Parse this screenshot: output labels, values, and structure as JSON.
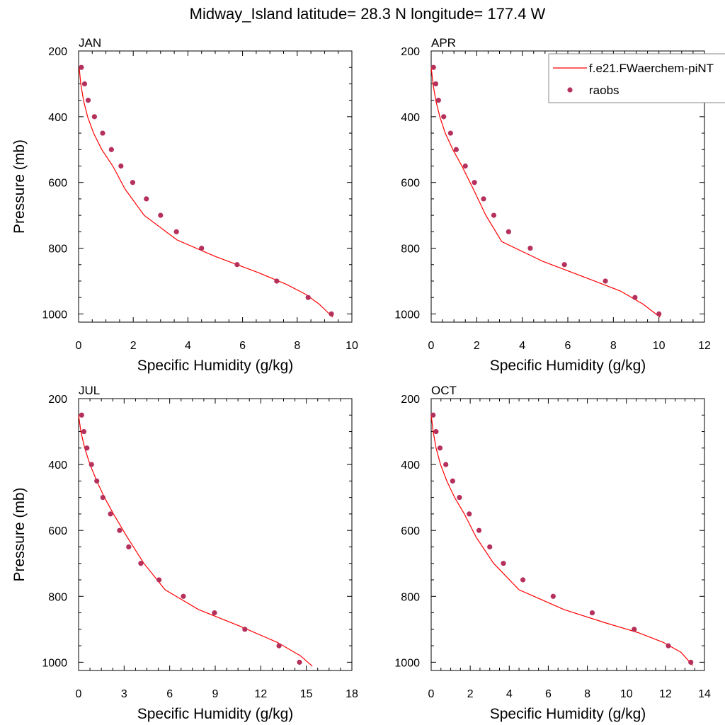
{
  "figure": {
    "title": "Midway_Island  latitude= 28.3 N longitude= 177.4 W"
  },
  "legend": {
    "entries": [
      {
        "label": "f.e21.FWaerchem-piNT",
        "kind": "line",
        "color": "#ff0000"
      },
      {
        "label": "raobs",
        "kind": "marker",
        "color": "#b5305a"
      }
    ]
  },
  "colors": {
    "model_line": "#ff0000",
    "obs_marker": "#b5305a",
    "axes": "#000000"
  },
  "chart_data": [
    {
      "type": "line",
      "panel_label": "JAN",
      "xlabel": "Specific Humidity (g/kg)",
      "ylabel": "Pressure (mb)",
      "xlim": [
        0,
        10
      ],
      "xticks": [
        0,
        2,
        4,
        6,
        8,
        10
      ],
      "ylim": [
        200,
        1025
      ],
      "yticks": [
        200,
        400,
        600,
        800,
        1000
      ],
      "y_reversed": true,
      "grid": false,
      "legend_shown": false,
      "series": [
        {
          "name": "f.e21.FWaerchem-piNT",
          "kind": "line",
          "x": [
            0.02,
            0.08,
            0.18,
            0.33,
            0.55,
            0.85,
            1.25,
            1.7,
            2.4,
            3.6,
            5.0,
            6.6,
            7.6,
            8.3,
            8.8,
            9.3
          ],
          "y": [
            250,
            300,
            350,
            400,
            450,
            500,
            550,
            620,
            700,
            775,
            825,
            875,
            910,
            940,
            970,
            1010
          ]
        },
        {
          "name": "raobs",
          "kind": "marker",
          "x": [
            0.1,
            0.22,
            0.35,
            0.58,
            0.88,
            1.2,
            1.55,
            1.98,
            2.48,
            3.0,
            3.58,
            4.5,
            5.8,
            7.25,
            8.4,
            9.25
          ],
          "y": [
            250,
            300,
            350,
            400,
            450,
            500,
            550,
            600,
            650,
            700,
            750,
            800,
            850,
            900,
            950,
            1000
          ]
        }
      ]
    },
    {
      "type": "line",
      "panel_label": "APR",
      "xlabel": "Specific Humidity (g/kg)",
      "ylabel": "",
      "xlim": [
        0,
        12
      ],
      "xticks": [
        0,
        2,
        4,
        6,
        8,
        10,
        12
      ],
      "ylim": [
        200,
        1025
      ],
      "yticks": [
        200,
        400,
        600,
        800,
        1000
      ],
      "y_reversed": true,
      "grid": false,
      "legend_shown": true,
      "legend_position": "top-right",
      "series": [
        {
          "name": "f.e21.FWaerchem-piNT",
          "kind": "line",
          "x": [
            0.0,
            0.08,
            0.2,
            0.38,
            0.62,
            0.95,
            1.35,
            1.85,
            2.4,
            3.1,
            4.9,
            6.8,
            8.3,
            9.3,
            10.05
          ],
          "y": [
            250,
            300,
            350,
            400,
            450,
            500,
            550,
            620,
            700,
            780,
            840,
            890,
            930,
            970,
            1010
          ]
        },
        {
          "name": "raobs",
          "kind": "marker",
          "x": [
            0.1,
            0.2,
            0.32,
            0.55,
            0.85,
            1.1,
            1.5,
            1.9,
            2.3,
            2.75,
            3.4,
            4.35,
            5.85,
            7.65,
            8.95,
            10.0
          ],
          "y": [
            250,
            300,
            350,
            400,
            450,
            500,
            550,
            600,
            650,
            700,
            750,
            800,
            850,
            900,
            950,
            1000
          ]
        }
      ]
    },
    {
      "type": "line",
      "panel_label": "JUL",
      "xlabel": "Specific Humidity (g/kg)",
      "ylabel": "Pressure (mb)",
      "xlim": [
        0,
        18
      ],
      "xticks": [
        0,
        3,
        6,
        9,
        12,
        15,
        18
      ],
      "ylim": [
        200,
        1025
      ],
      "yticks": [
        200,
        400,
        600,
        800,
        1000
      ],
      "y_reversed": true,
      "grid": false,
      "legend_shown": false,
      "series": [
        {
          "name": "f.e21.FWaerchem-piNT",
          "kind": "line",
          "x": [
            0.0,
            0.15,
            0.4,
            0.75,
            1.2,
            1.7,
            2.3,
            3.2,
            4.3,
            5.7,
            7.9,
            10.6,
            13.1,
            14.6,
            15.4
          ],
          "y": [
            250,
            300,
            350,
            400,
            450,
            500,
            550,
            620,
            700,
            780,
            840,
            890,
            940,
            980,
            1012
          ]
        },
        {
          "name": "raobs",
          "kind": "marker",
          "x": [
            0.2,
            0.35,
            0.55,
            0.85,
            1.2,
            1.6,
            2.1,
            2.7,
            3.3,
            4.1,
            5.3,
            6.9,
            8.95,
            10.95,
            13.2,
            14.55
          ],
          "y": [
            250,
            300,
            350,
            400,
            450,
            500,
            550,
            600,
            650,
            700,
            750,
            800,
            850,
            900,
            950,
            1000
          ]
        }
      ]
    },
    {
      "type": "line",
      "panel_label": "OCT",
      "xlabel": "Specific Humidity (g/kg)",
      "ylabel": "",
      "xlim": [
        0,
        14
      ],
      "xticks": [
        0,
        2,
        4,
        6,
        8,
        10,
        12,
        14
      ],
      "ylim": [
        200,
        1025
      ],
      "yticks": [
        200,
        400,
        600,
        800,
        1000
      ],
      "y_reversed": true,
      "grid": false,
      "legend_shown": false,
      "series": [
        {
          "name": "f.e21.FWaerchem-piNT",
          "kind": "line",
          "x": [
            0.0,
            0.1,
            0.25,
            0.48,
            0.8,
            1.2,
            1.7,
            2.3,
            3.2,
            4.5,
            6.8,
            8.9,
            10.6,
            11.9,
            12.8,
            13.4
          ],
          "y": [
            250,
            300,
            350,
            400,
            450,
            500,
            550,
            620,
            700,
            780,
            840,
            880,
            910,
            940,
            970,
            1010
          ]
        },
        {
          "name": "raobs",
          "kind": "marker",
          "x": [
            0.1,
            0.25,
            0.45,
            0.75,
            1.1,
            1.45,
            1.95,
            2.45,
            3.0,
            3.7,
            4.7,
            6.25,
            8.25,
            10.4,
            12.15,
            13.3
          ],
          "y": [
            250,
            300,
            350,
            400,
            450,
            500,
            550,
            600,
            650,
            700,
            750,
            800,
            850,
            900,
            950,
            1000
          ]
        }
      ]
    }
  ]
}
